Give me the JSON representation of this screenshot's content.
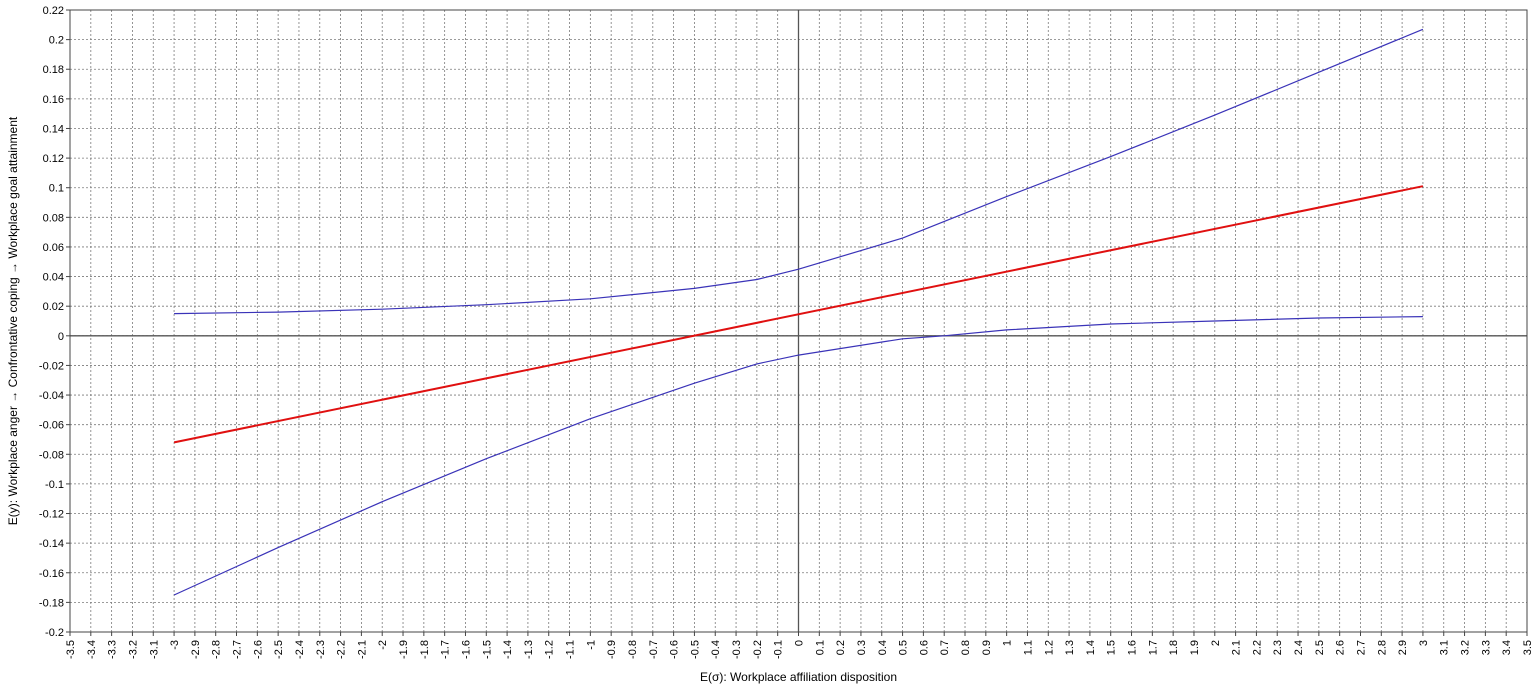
{
  "chart_data": {
    "type": "line",
    "title": "",
    "xlabel": "E(σ): Workplace affiliation disposition",
    "ylabel": "E(y): Workplace anger → Confrontative coping → Workplace goal attainment",
    "xlim": [
      -3.5,
      3.5
    ],
    "ylim": [
      -0.2,
      0.22
    ],
    "x_tick_step": 0.1,
    "y_tick_step": 0.02,
    "grid": true,
    "legend": "none",
    "colors": {
      "estimate": "#e01010",
      "bounds": "#3a33b8",
      "axis": "#555555",
      "grid": "#7a7a7a"
    },
    "series": [
      {
        "role": "estimate",
        "x": [
          -3,
          3
        ],
        "y": [
          -0.072,
          0.101
        ]
      },
      {
        "role": "upper-bound",
        "x": [
          -3,
          -2.5,
          -2,
          -1.5,
          -1,
          -0.5,
          -0.2,
          0,
          0.5,
          1,
          1.5,
          2,
          2.5,
          3
        ],
        "y": [
          0.015,
          0.016,
          0.018,
          0.021,
          0.025,
          0.032,
          0.038,
          0.045,
          0.066,
          0.094,
          0.121,
          0.149,
          0.178,
          0.207
        ]
      },
      {
        "role": "lower-bound",
        "x": [
          -3,
          -2.5,
          -2,
          -1.5,
          -1,
          -0.5,
          -0.2,
          0,
          0.5,
          0.7,
          1,
          1.5,
          2,
          2.5,
          3
        ],
        "y": [
          -0.175,
          -0.143,
          -0.112,
          -0.083,
          -0.056,
          -0.032,
          -0.019,
          -0.013,
          -0.002,
          0.0,
          0.004,
          0.008,
          0.01,
          0.012,
          0.013
        ]
      }
    ]
  }
}
